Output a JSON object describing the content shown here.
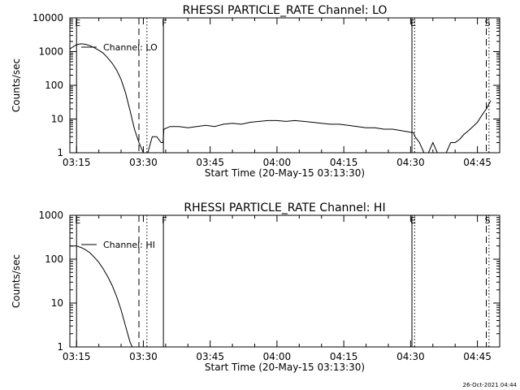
{
  "footer": {
    "datestamp": "26-Oct-2021 04:44"
  },
  "chart_data": [
    {
      "type": "line",
      "title": "RHESSI PARTICLE_RATE Channel: LO",
      "xlabel": "Start Time (20-May-15 03:13:30)",
      "ylabel": "Counts/sec",
      "yscale": "log",
      "ylim": [
        1,
        10000
      ],
      "xlim": [
        "03:13:30",
        "04:50:00"
      ],
      "x_ticks": [
        "03:15",
        "03:30",
        "03:45",
        "04:00",
        "04:15",
        "04:30",
        "04:45"
      ],
      "y_ticks": [
        "1",
        "10",
        "100",
        "1000",
        "10000"
      ],
      "legend": "Channel: LO",
      "legend_position": "top-left",
      "markers": [
        {
          "label": "E",
          "time": "03:15",
          "style": "solid"
        },
        {
          "label": "",
          "time": "03:29",
          "style": "dashed"
        },
        {
          "label": "",
          "time": "03:30.8",
          "style": "dotted"
        },
        {
          "label": "F",
          "time": "03:34.5",
          "style": "solid"
        },
        {
          "label": "E",
          "time": "04:30.3",
          "style": "solid"
        },
        {
          "label": "",
          "time": "04:30.9",
          "style": "dotted"
        },
        {
          "label": "S",
          "time": "04:47",
          "style": "dashed"
        },
        {
          "label": "",
          "time": "04:47.6",
          "style": "dotted"
        }
      ],
      "series": [
        {
          "x": [
            "03:13.5",
            "03:15",
            "03:16",
            "03:17",
            "03:18",
            "03:19",
            "03:20",
            "03:21",
            "03:22",
            "03:23",
            "03:24",
            "03:25",
            "03:26",
            "03:27",
            "03:28",
            "03:29",
            "03:30",
            "03:31",
            "03:32",
            "03:33",
            "03:34",
            "03:34.4",
            "03:34.6",
            "03:36",
            "03:38",
            "03:40",
            "03:42",
            "03:44",
            "03:46",
            "03:48",
            "03:50",
            "03:52",
            "03:54",
            "03:56",
            "03:58",
            "04:00",
            "04:02",
            "04:04",
            "04:06",
            "04:08",
            "04:10",
            "04:12",
            "04:14",
            "04:16",
            "04:18",
            "04:20",
            "04:22",
            "04:24",
            "04:26",
            "04:28",
            "04:30.2",
            "04:30.6",
            "04:31",
            "04:32",
            "04:33",
            "04:34",
            "04:35",
            "04:36",
            "04:37",
            "04:38",
            "04:39",
            "04:40",
            "04:41",
            "04:42",
            "04:43",
            "04:44",
            "04:45",
            "04:46",
            "04:47",
            "04:48"
          ],
          "y": [
            1200,
            1600,
            1700,
            1650,
            1500,
            1300,
            1100,
            900,
            650,
            450,
            280,
            150,
            60,
            18,
            5,
            2,
            1,
            1,
            3,
            3,
            2,
            2,
            5,
            6,
            6,
            5.5,
            6,
            6.5,
            6,
            7,
            7.5,
            7,
            8,
            8.5,
            9,
            9,
            8.5,
            9,
            8.5,
            8,
            7.5,
            7,
            7,
            6.5,
            6,
            5.5,
            5.5,
            5,
            5,
            4.5,
            4,
            4,
            3,
            2,
            1,
            1,
            2,
            1,
            1,
            1,
            2,
            2,
            2.5,
            3.5,
            4.5,
            6,
            8,
            13,
            20,
            35
          ]
        }
      ]
    },
    {
      "type": "line",
      "title": "RHESSI PARTICLE_RATE Channel: HI",
      "xlabel": "Start Time (20-May-15 03:13:30)",
      "ylabel": "Counts/sec",
      "yscale": "log",
      "ylim": [
        1,
        1000
      ],
      "xlim": [
        "03:13:30",
        "04:50:00"
      ],
      "x_ticks": [
        "03:15",
        "03:30",
        "03:45",
        "04:00",
        "04:15",
        "04:30",
        "04:45"
      ],
      "y_ticks": [
        "1",
        "10",
        "100",
        "1000"
      ],
      "legend": "Channel: HI",
      "legend_position": "top-left",
      "markers": [
        {
          "label": "E",
          "time": "03:15",
          "style": "solid"
        },
        {
          "label": "",
          "time": "03:29",
          "style": "dashed"
        },
        {
          "label": "",
          "time": "03:30.8",
          "style": "dotted"
        },
        {
          "label": "F",
          "time": "03:34.5",
          "style": "solid"
        },
        {
          "label": "E",
          "time": "04:30.3",
          "style": "solid"
        },
        {
          "label": "",
          "time": "04:30.9",
          "style": "dotted"
        },
        {
          "label": "S",
          "time": "04:47",
          "style": "dashed"
        },
        {
          "label": "",
          "time": "04:47.6",
          "style": "dotted"
        }
      ],
      "series": [
        {
          "x": [
            "03:13.5",
            "03:15",
            "03:16",
            "03:17",
            "03:18",
            "03:19",
            "03:20",
            "03:21",
            "03:22",
            "03:23",
            "03:24",
            "03:25",
            "03:26",
            "03:27",
            "03:27.5"
          ],
          "y": [
            200,
            200,
            185,
            165,
            140,
            110,
            85,
            60,
            40,
            25,
            14,
            7,
            3,
            1.3,
            1
          ]
        }
      ]
    }
  ]
}
